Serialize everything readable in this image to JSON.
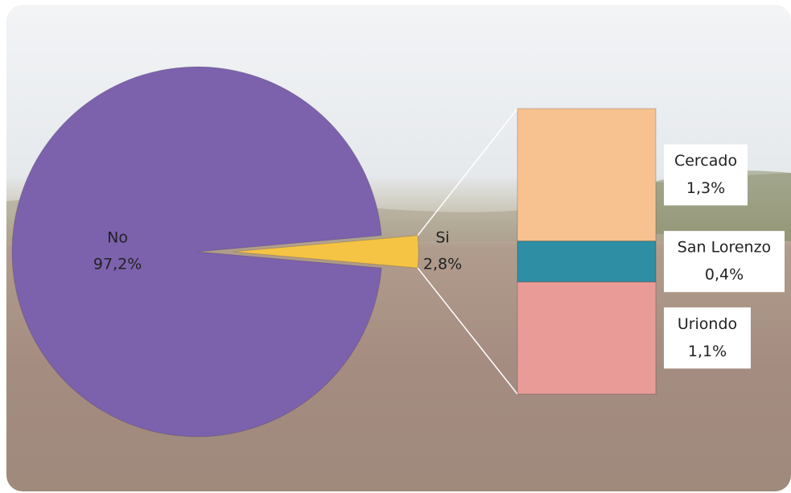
{
  "chart_data": {
    "type": "pie",
    "categories": [
      "No",
      "Si"
    ],
    "values": [
      97.2,
      2.8
    ],
    "value_labels": [
      "97,2%",
      "2,8%"
    ],
    "colors": [
      "#7c62ad",
      "#f6c444"
    ],
    "breakdown": {
      "categories": [
        "Cercado",
        "San Lorenzo",
        "Uriondo"
      ],
      "values": [
        1.3,
        0.4,
        1.1
      ],
      "value_labels": [
        "1,3%",
        "0,4%",
        "1,1%"
      ],
      "colors": [
        "#f8c190",
        "#2e8ea3",
        "#e99b98"
      ]
    }
  }
}
